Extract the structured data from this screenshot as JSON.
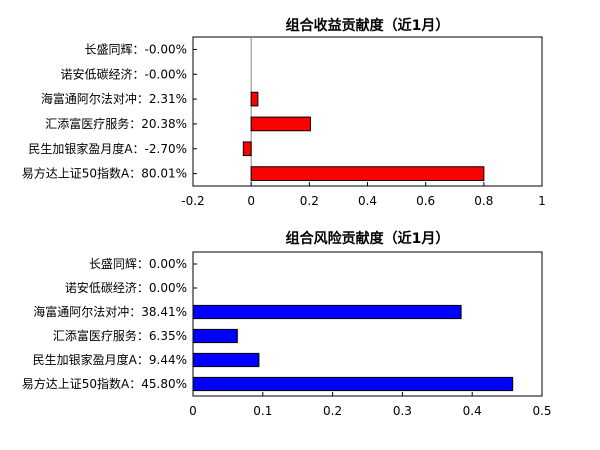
{
  "chart_data": [
    {
      "type": "bar",
      "orientation": "horizontal",
      "title": "组合收益贡献度（近1月）",
      "labels": [
        "长盛同辉：-0.00%",
        "诺安低碳经济：-0.00%",
        "海富通阿尔法对冲：2.31%",
        "汇添富医疗服务：20.38%",
        "民生加银家盈月度A：-2.70%",
        "易方达上证50指数A：80.01%"
      ],
      "values": [
        0.0,
        0.0,
        0.0231,
        0.2038,
        -0.027,
        0.8001
      ],
      "xlim": [
        -0.2,
        1.0
      ],
      "xticks": [
        -0.2,
        0,
        0.2,
        0.4,
        0.6,
        0.8,
        1
      ],
      "xtick_labels": [
        "-0.2",
        "0",
        "0.2",
        "0.4",
        "0.6",
        "0.8",
        "1"
      ],
      "bar_color": "#ff0000",
      "grid": false
    },
    {
      "type": "bar",
      "orientation": "horizontal",
      "title": "组合风险贡献度（近1月）",
      "labels": [
        "长盛同辉：0.00%",
        "诺安低碳经济：0.00%",
        "海富通阿尔法对冲：38.41%",
        "汇添富医疗服务：6.35%",
        "民生加银家盈月度A：9.44%",
        "易方达上证50指数A：45.80%"
      ],
      "values": [
        0.0,
        0.0,
        0.3841,
        0.0635,
        0.0944,
        0.458
      ],
      "xlim": [
        0,
        0.5
      ],
      "xticks": [
        0,
        0.1,
        0.2,
        0.3,
        0.4,
        0.5
      ],
      "xtick_labels": [
        "0",
        "0.1",
        "0.2",
        "0.3",
        "0.4",
        "0.5"
      ],
      "bar_color": "#0000ff",
      "grid": false
    }
  ]
}
